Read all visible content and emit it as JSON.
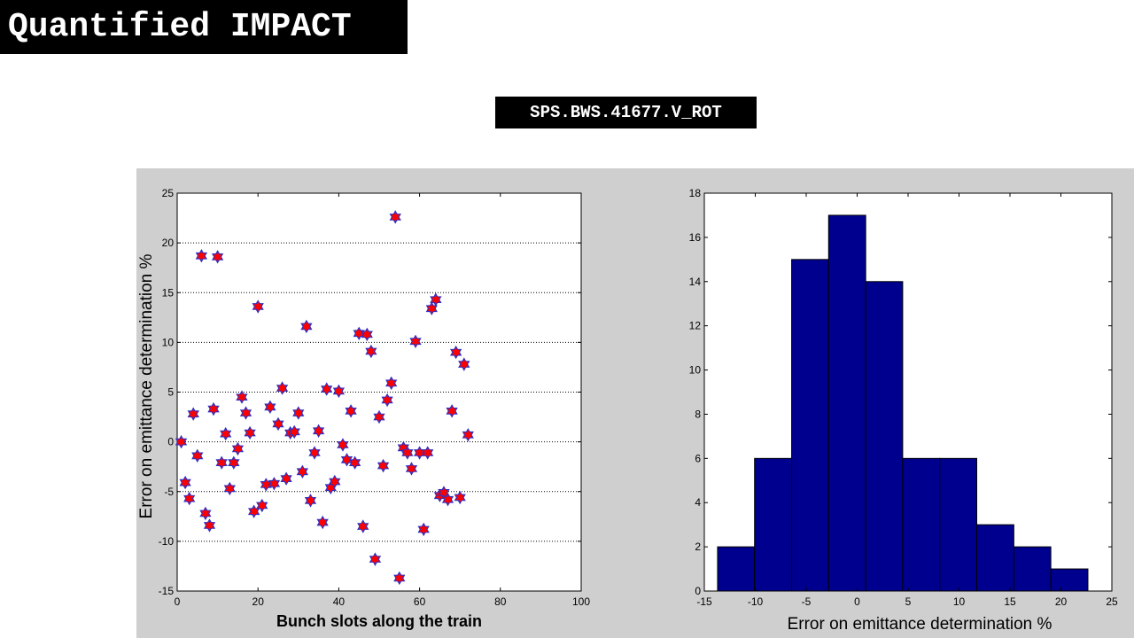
{
  "slide": {
    "title": "Quantified IMPACT",
    "subtitle": "SPS.BWS.41677.V_ROT"
  },
  "colors": {
    "panel": "#cfcfcf",
    "marker_fill": "#ff0000",
    "marker_edge": "#3030c0",
    "bar_fill": "#00008f"
  },
  "chart_data": [
    {
      "type": "scatter",
      "xlabel": "Bunch slots along the train",
      "ylabel": "Error on emittance determination %",
      "xlim": [
        0,
        100
      ],
      "ylim": [
        -15,
        25
      ],
      "xticks": [
        0,
        20,
        40,
        60,
        80,
        100
      ],
      "yticks": [
        -15,
        -10,
        -5,
        0,
        5,
        10,
        15,
        20,
        25
      ],
      "grid": "horizontal-dotted",
      "marker": "hexagram",
      "x": [
        1,
        2,
        3,
        4,
        5,
        6,
        7,
        8,
        9,
        10,
        11,
        12,
        13,
        14,
        15,
        16,
        17,
        18,
        19,
        20,
        21,
        22,
        23,
        24,
        25,
        26,
        27,
        28,
        29,
        30,
        31,
        32,
        33,
        34,
        35,
        36,
        37,
        38,
        39,
        40,
        41,
        42,
        43,
        44,
        45,
        46,
        47,
        48,
        49,
        50,
        51,
        52,
        53,
        54,
        55,
        56,
        57,
        58,
        59,
        60,
        61,
        62,
        63,
        64,
        65,
        66,
        67,
        68,
        69,
        70,
        71,
        72
      ],
      "y": [
        0,
        -4.1,
        -5.7,
        2.8,
        -1.4,
        18.7,
        -7.2,
        -8.4,
        3.3,
        18.6,
        -2.1,
        0.8,
        -4.7,
        -2.1,
        -0.7,
        4.5,
        2.9,
        0.9,
        -7,
        13.6,
        -6.4,
        -4.3,
        3.5,
        -4.2,
        1.8,
        5.4,
        -3.7,
        0.9,
        1,
        2.9,
        -3,
        11.6,
        -5.9,
        -1.1,
        1.1,
        -8.1,
        5.3,
        -4.6,
        -4,
        5.1,
        -0.3,
        -1.8,
        3.1,
        -2.1,
        10.9,
        -8.5,
        10.8,
        9.1,
        -11.8,
        2.5,
        -2.4,
        4.2,
        5.9,
        22.6,
        -13.7,
        -0.6,
        -1.1,
        -2.7,
        10.1,
        -1.1,
        -8.8,
        -1.1,
        13.4,
        14.3,
        -5.4,
        -5.1,
        -5.8,
        3.1,
        9,
        -5.6,
        7.8,
        0.7
      ]
    },
    {
      "type": "bar",
      "subtype": "histogram",
      "xlabel": "Error on emittance determination %",
      "ylabel": "",
      "xlim": [
        -15,
        25
      ],
      "ylim": [
        0,
        18
      ],
      "xticks": [
        -15,
        -10,
        -5,
        0,
        5,
        10,
        15,
        20,
        25
      ],
      "yticks": [
        0,
        2,
        4,
        6,
        8,
        10,
        12,
        14,
        16,
        18
      ],
      "bin_edges": [
        -13.7,
        -10.07,
        -6.43,
        -2.8,
        0.84,
        4.47,
        8.11,
        11.74,
        15.38,
        19.01,
        22.65
      ],
      "values": [
        2,
        6,
        15,
        17,
        14,
        6,
        6,
        3,
        2,
        1
      ]
    }
  ]
}
